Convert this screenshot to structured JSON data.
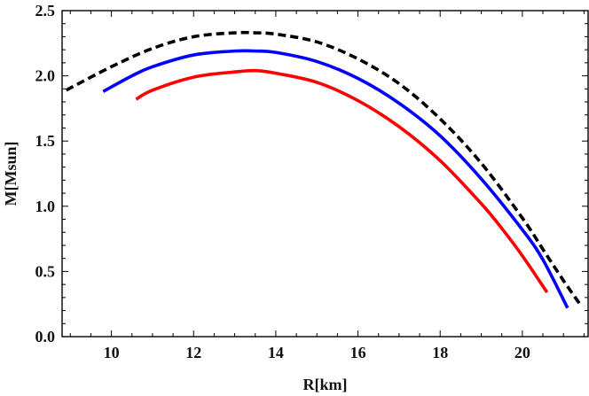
{
  "chart_data": {
    "type": "line",
    "title": "",
    "xlabel": "R[km]",
    "ylabel": "M[Msun]",
    "xlim": [
      8.8,
      21.6
    ],
    "ylim": [
      0.0,
      2.5
    ],
    "x_ticks": [
      10,
      12,
      14,
      16,
      18,
      20
    ],
    "y_ticks": [
      0.0,
      0.5,
      1.0,
      1.5,
      2.0,
      2.5
    ],
    "x_tick_labels": [
      "10",
      "12",
      "14",
      "16",
      "18",
      "20"
    ],
    "y_tick_labels": [
      "0.0",
      "0.5",
      "1.0",
      "1.5",
      "2.0",
      "2.5"
    ],
    "grid": false,
    "legend": "none",
    "series": [
      {
        "color": "#000000",
        "style": "dashed",
        "x": [
          8.9,
          10.0,
          11.0,
          12.0,
          13.0,
          13.5,
          14.0,
          15.0,
          16.0,
          17.0,
          18.0,
          19.0,
          20.0,
          20.5,
          21.0,
          21.4
        ],
        "y": [
          1.89,
          2.07,
          2.21,
          2.3,
          2.33,
          2.33,
          2.32,
          2.26,
          2.13,
          1.94,
          1.67,
          1.33,
          0.91,
          0.67,
          0.43,
          0.25
        ]
      },
      {
        "color": "#0000ff",
        "style": "solid",
        "x": [
          9.8,
          10.5,
          11.0,
          12.0,
          13.0,
          13.5,
          14.0,
          15.0,
          16.0,
          17.0,
          18.0,
          19.0,
          20.0,
          20.5,
          21.1
        ],
        "y": [
          1.88,
          2.0,
          2.07,
          2.16,
          2.19,
          2.19,
          2.18,
          2.11,
          1.98,
          1.79,
          1.54,
          1.21,
          0.82,
          0.59,
          0.22
        ]
      },
      {
        "color": "#ff0000",
        "style": "solid",
        "x": [
          10.6,
          11.0,
          12.0,
          13.0,
          13.5,
          14.0,
          15.0,
          16.0,
          17.0,
          18.0,
          19.0,
          19.5,
          20.0,
          20.6
        ],
        "y": [
          1.82,
          1.89,
          1.99,
          2.03,
          2.04,
          2.02,
          1.95,
          1.81,
          1.61,
          1.35,
          1.02,
          0.83,
          0.62,
          0.34
        ]
      }
    ]
  }
}
